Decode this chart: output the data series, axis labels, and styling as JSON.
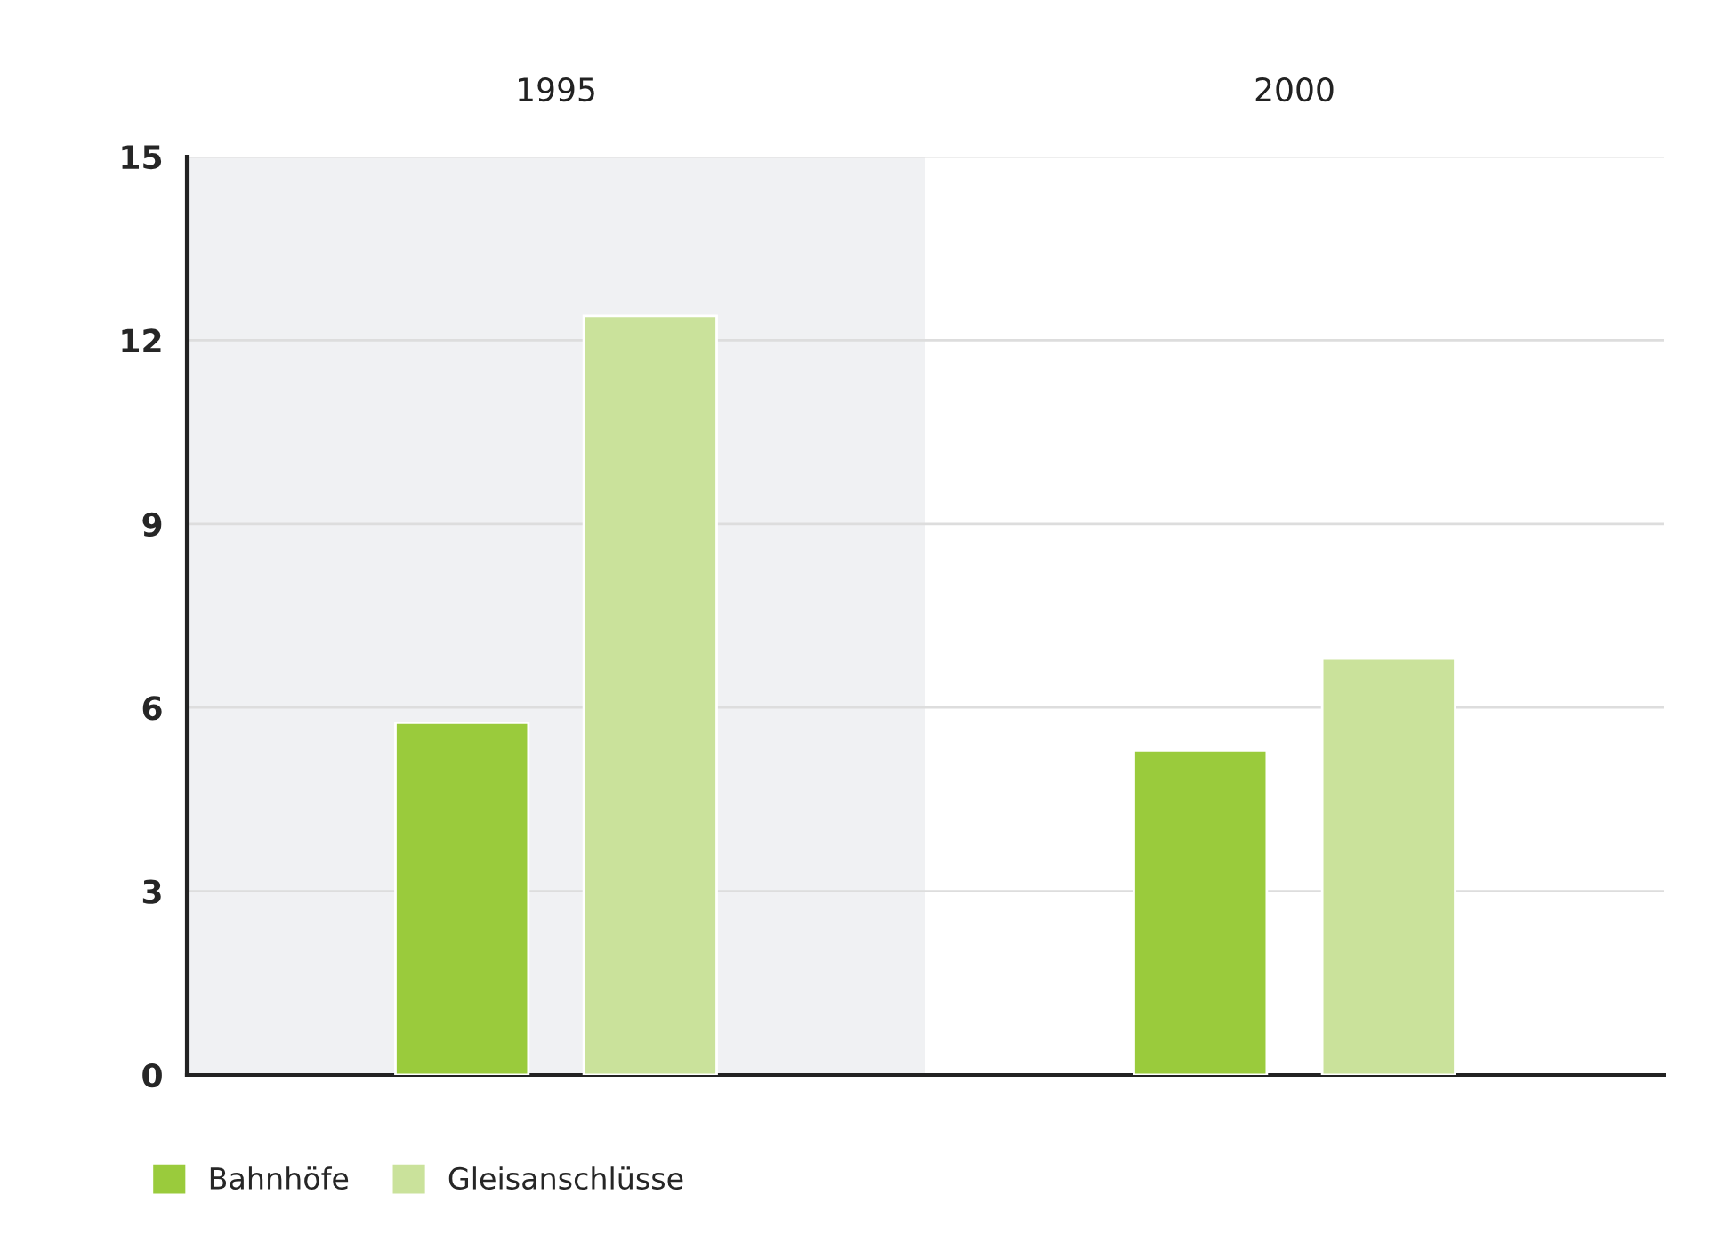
{
  "chart_data": {
    "type": "bar",
    "categories": [
      "1995",
      "2000"
    ],
    "series": [
      {
        "name": "Bahnhöfe",
        "color": "#9acb3c",
        "values": [
          5.75,
          5.3
        ]
      },
      {
        "name": "Gleisanschlüsse",
        "color": "#cae29b",
        "values": [
          12.4,
          6.8
        ]
      }
    ],
    "ylim": [
      0,
      15
    ],
    "yticks": [
      0,
      3,
      6,
      9,
      12,
      15
    ],
    "grid": "y",
    "legend": "bottom left",
    "bands": [
      {
        "axis": "x",
        "from": "1995",
        "to": "1995",
        "color": "#f0f1f3"
      }
    ]
  }
}
